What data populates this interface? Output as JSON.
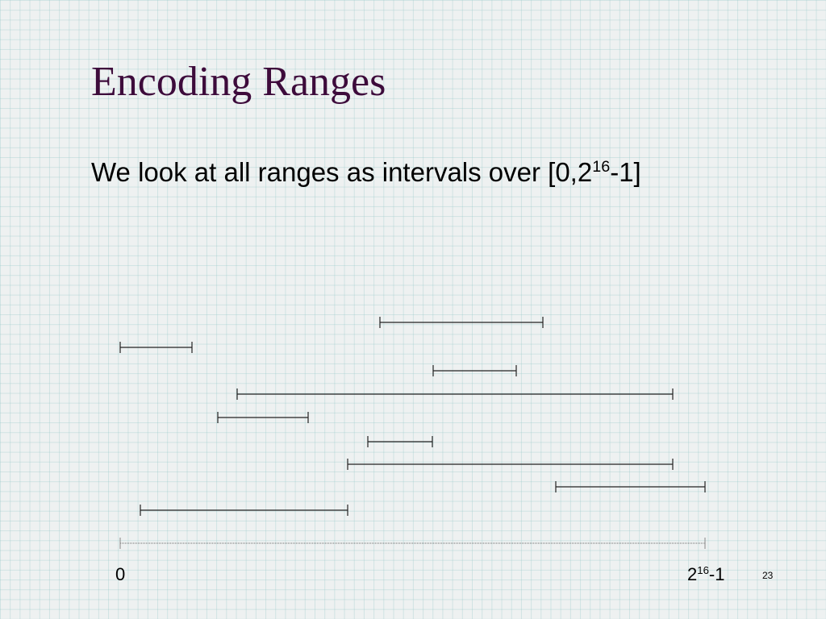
{
  "title": "Encoding Ranges",
  "body": {
    "text": "We look at all ranges as intervals over [0,2",
    "superscript": "16",
    "suffix": "-1]"
  },
  "axis": {
    "start": "0",
    "end": {
      "base": "2",
      "superscript": "16",
      "suffix": "-1"
    }
  },
  "page_number": "23"
}
